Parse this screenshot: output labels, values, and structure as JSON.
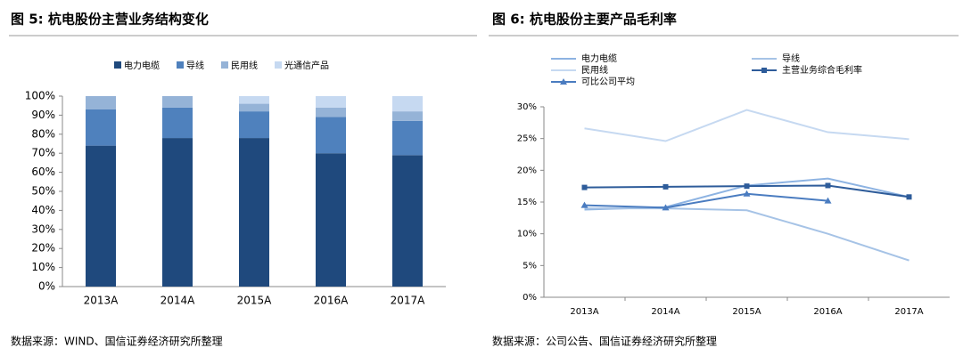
{
  "chart_data": [
    {
      "type": "stacked_bar",
      "title": "图 5: 杭电股份主营业务结构变化",
      "source": "数据来源：WIND、国信证券经济研究所整理",
      "categories": [
        "2013A",
        "2014A",
        "2015A",
        "2016A",
        "2017A"
      ],
      "series": [
        {
          "name": "电力电缆",
          "color": "#1f497d",
          "values": [
            74,
            78,
            78,
            70,
            69
          ]
        },
        {
          "name": "导线",
          "color": "#4f81bd",
          "values": [
            19,
            16,
            14,
            19,
            18
          ]
        },
        {
          "name": "民用线",
          "color": "#95b3d7",
          "values": [
            7,
            6,
            4,
            5,
            5
          ]
        },
        {
          "name": "光通信产品",
          "color": "#c6d9f1",
          "values": [
            0,
            0,
            4,
            6,
            8
          ]
        }
      ],
      "ylim": [
        0,
        100
      ],
      "yticks": [
        {
          "value": 0,
          "label": "0%"
        },
        {
          "value": 10,
          "label": "10%"
        },
        {
          "value": 20,
          "label": "20%"
        },
        {
          "value": 30,
          "label": "30%"
        },
        {
          "value": 40,
          "label": "40%"
        },
        {
          "value": 50,
          "label": "50%"
        },
        {
          "value": 60,
          "label": "60%"
        },
        {
          "value": 70,
          "label": "70%"
        },
        {
          "value": 80,
          "label": "80%"
        },
        {
          "value": 90,
          "label": "90%"
        },
        {
          "value": 100,
          "label": "100%"
        }
      ],
      "grid": false,
      "legend": "top"
    },
    {
      "type": "line",
      "title": "图 6: 杭电股份主要产品毛利率",
      "source": "数据来源：公司公告、国信证券经济研究所整理",
      "categories": [
        "2013A",
        "2014A",
        "2015A",
        "2016A",
        "2017A"
      ],
      "series": [
        {
          "name": "电力电缆",
          "color": "#8db3e2",
          "marker": "none",
          "values": [
            13.8,
            14.2,
            17.6,
            18.7,
            15.8
          ]
        },
        {
          "name": "导线",
          "color": "#a6c3e6",
          "marker": "none",
          "values": [
            14.0,
            14.0,
            13.7,
            10.0,
            5.8
          ]
        },
        {
          "name": "民用线",
          "color": "#c6d9f1",
          "marker": "none",
          "values": [
            26.6,
            24.6,
            29.5,
            26.0,
            24.9
          ]
        },
        {
          "name": "主营业务综合毛利率",
          "color": "#2e5c9a",
          "marker": "square",
          "values": [
            17.3,
            17.4,
            17.5,
            17.6,
            15.8
          ]
        },
        {
          "name": "可比公司平均",
          "color": "#4a7cc0",
          "marker": "triangle",
          "values": [
            14.5,
            14.1,
            16.3,
            15.2,
            null
          ]
        }
      ],
      "ylim": [
        0,
        30
      ],
      "yticks": [
        {
          "value": 0,
          "label": "0%"
        },
        {
          "value": 5,
          "label": "5%"
        },
        {
          "value": 10,
          "label": "10%"
        },
        {
          "value": 15,
          "label": "15%"
        },
        {
          "value": 20,
          "label": "20%"
        },
        {
          "value": 25,
          "label": "25%"
        },
        {
          "value": 30,
          "label": "30%"
        }
      ],
      "grid": false,
      "legend": "top-left"
    }
  ]
}
